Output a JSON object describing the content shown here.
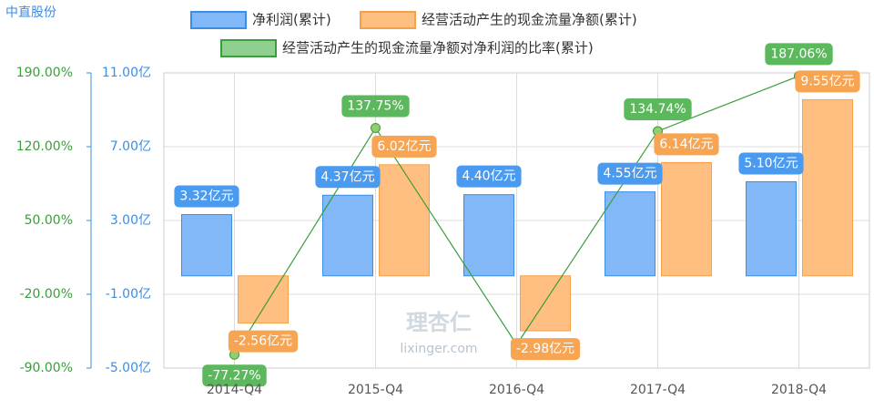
{
  "chart_data": {
    "type": "bar",
    "title": "中直股份",
    "watermark": [
      "理杏仁",
      "lixinger.com"
    ],
    "categories": [
      "2014-Q4",
      "2015-Q4",
      "2016-Q4",
      "2017-Q4",
      "2018-Q4"
    ],
    "series": [
      {
        "name": "净利润(累计)",
        "type": "bar",
        "color": "#82b8f7",
        "stroke": "#3a8ee6",
        "values": [
          3.32,
          4.37,
          4.4,
          4.55,
          5.1
        ],
        "value_labels": [
          "3.32亿元",
          "4.37亿元",
          "4.40亿元",
          "4.55亿元",
          "5.10亿元"
        ]
      },
      {
        "name": "经营活动产生的现金流量净额(累计)",
        "type": "bar",
        "color": "#ffbf80",
        "stroke": "#f5a04a",
        "values": [
          -2.56,
          6.02,
          -2.98,
          6.14,
          9.55
        ],
        "value_labels": [
          "-2.56亿元",
          "6.02亿元",
          "-2.98亿元",
          "6.14亿元",
          "9.55亿元"
        ]
      },
      {
        "name": "经营活动产生的现金流量净额对净利润的比率(累计)",
        "type": "line",
        "axis": "y2",
        "color": "#3a9e3a",
        "values": [
          -77.27,
          137.75,
          -67.73,
          134.74,
          187.06
        ],
        "value_labels": [
          "-77.27%",
          "137.75%",
          null,
          "134.74%",
          "187.06%"
        ]
      }
    ],
    "ylim": [
      -5,
      11
    ],
    "yticks": [
      {
        "value": -5,
        "label": "-5.00亿"
      },
      {
        "value": -1,
        "label": "-1.00亿"
      },
      {
        "value": 3,
        "label": "3.00亿"
      },
      {
        "value": 7,
        "label": "7.00亿"
      },
      {
        "value": 11,
        "label": "11.00亿"
      }
    ],
    "y2lim": [
      -90,
      190
    ],
    "y2ticks": [
      {
        "value": -90,
        "label": "-90.00%"
      },
      {
        "value": -20,
        "label": "-20.00%"
      },
      {
        "value": 50,
        "label": "50.00%"
      },
      {
        "value": 120,
        "label": "120.00%"
      },
      {
        "value": 190,
        "label": "190.00%"
      }
    ],
    "grid": true
  }
}
